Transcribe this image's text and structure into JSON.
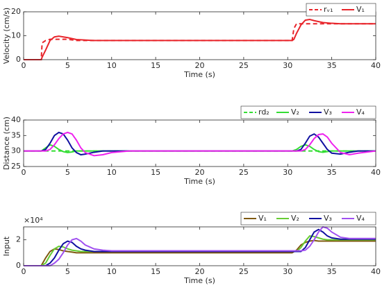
{
  "chart_data": [
    {
      "type": "line",
      "ylabel": "Velocity (cm/s)",
      "xlabel": "Time (s)",
      "x": [
        0,
        2,
        2.1,
        2.5,
        3,
        3.5,
        4,
        5,
        6,
        8,
        10,
        20,
        30,
        30.5,
        30.7,
        31,
        31.5,
        32,
        32.5,
        33,
        34,
        35,
        36,
        40
      ],
      "xlim": [
        0,
        40
      ],
      "xticks": [
        0,
        5,
        10,
        15,
        20,
        25,
        30,
        35,
        40
      ],
      "ylim": [
        0,
        20
      ],
      "yticks": [
        0,
        10,
        20
      ],
      "legend": "northeast",
      "series": [
        {
          "name": "rᵥ₁",
          "color": "#e8242a",
          "dash": true,
          "values": [
            0,
            0,
            7,
            8,
            8.5,
            8.5,
            8.5,
            8.5,
            8,
            8,
            8,
            8,
            8,
            8,
            13,
            15,
            15,
            15,
            15,
            15,
            15,
            15,
            15,
            15
          ]
        },
        {
          "name": "V₁",
          "color": "#e8242a",
          "dash": false,
          "values": [
            0,
            0,
            1,
            4,
            8,
            9.5,
            9.8,
            9.2,
            8.4,
            8,
            8,
            8,
            8,
            8,
            8.5,
            11,
            14.5,
            16.5,
            16.8,
            16.3,
            15.5,
            15.2,
            15,
            15
          ]
        }
      ]
    },
    {
      "type": "line",
      "ylabel": "Distance (cm)",
      "xlabel": "Time (s)",
      "x": [
        0,
        2,
        2.5,
        3,
        3.5,
        4,
        4.5,
        5,
        5.5,
        6,
        6.5,
        7,
        8,
        9,
        10,
        12,
        20,
        30,
        30.5,
        31,
        31.5,
        32,
        32.5,
        33,
        33.5,
        34,
        34.5,
        35,
        36,
        37,
        38,
        40
      ],
      "xlim": [
        0,
        40
      ],
      "xticks": [
        0,
        5,
        10,
        15,
        20,
        25,
        30,
        35,
        40
      ],
      "ylim": [
        25,
        40
      ],
      "yticks": [
        25,
        30,
        35,
        40
      ],
      "legend": "northeast",
      "series": [
        {
          "name": "rd₂",
          "color": "#33dd33",
          "dash": true,
          "values": [
            30,
            30,
            30,
            30,
            30,
            30,
            30,
            30,
            30,
            30,
            30,
            30,
            30,
            30,
            30,
            30,
            30,
            30,
            30,
            30,
            30,
            30,
            30,
            30,
            30,
            30,
            30,
            30,
            30,
            30,
            30,
            30
          ]
        },
        {
          "name": "V₂",
          "color": "#33dd33",
          "dash": false,
          "values": [
            30,
            30,
            31,
            32,
            31.5,
            30.5,
            29.8,
            29.5,
            29.7,
            30,
            30,
            30,
            30,
            30,
            30,
            30,
            30,
            30,
            30,
            30.5,
            31.5,
            32,
            31.5,
            30.5,
            29.8,
            29.6,
            29.8,
            30,
            30,
            30,
            30,
            30
          ]
        },
        {
          "name": "V₃",
          "color": "#1010a0",
          "dash": false,
          "values": [
            30,
            30,
            30.5,
            32.5,
            35,
            36,
            35.5,
            33.5,
            31,
            29.5,
            28.8,
            29,
            29.6,
            30,
            30,
            30,
            30,
            30,
            30,
            30,
            30.5,
            32.5,
            34.8,
            35.5,
            34.5,
            32.5,
            30.5,
            29.3,
            29,
            29.6,
            30,
            30
          ]
        },
        {
          "name": "V₄",
          "color": "#ee22ee",
          "dash": false,
          "values": [
            30,
            30,
            30,
            30.5,
            32,
            34,
            35.5,
            36,
            35.5,
            33.5,
            31,
            29.5,
            28.5,
            28.8,
            29.5,
            30,
            30,
            30,
            30,
            30,
            30,
            30.5,
            32,
            34,
            35.3,
            35.5,
            34.5,
            32.5,
            29.5,
            28.8,
            29.3,
            30
          ]
        }
      ]
    },
    {
      "type": "line",
      "ylabel": "Input",
      "xlabel": "Time (s)",
      "multiplier": "×10⁴",
      "x": [
        0,
        2,
        2.5,
        3,
        3.5,
        4,
        4.5,
        5,
        5.5,
        6,
        6.5,
        7,
        8,
        9,
        10,
        12,
        20,
        30,
        30.5,
        31,
        31.5,
        32,
        32.5,
        33,
        33.5,
        34,
        34.5,
        35,
        36,
        37,
        38,
        40
      ],
      "xlim": [
        0,
        40
      ],
      "xticks": [
        0,
        5,
        10,
        15,
        20,
        25,
        30,
        35,
        40
      ],
      "ylim": [
        0,
        3
      ],
      "yticks": [
        0,
        2
      ],
      "legend": "northeast",
      "series": [
        {
          "name": "V₁",
          "color": "#7f5a10",
          "dash": false,
          "values": [
            0,
            0,
            0.6,
            1.1,
            1.3,
            1.25,
            1.15,
            1.1,
            1.05,
            1,
            1,
            1,
            1,
            1,
            1,
            1,
            1,
            1,
            1,
            1.2,
            1.6,
            1.8,
            1.9,
            1.95,
            1.9,
            1.9,
            1.9,
            1.9,
            1.9,
            1.9,
            1.9,
            1.9
          ]
        },
        {
          "name": "V₂",
          "color": "#66cc33",
          "dash": false,
          "values": [
            0,
            0,
            0.2,
            0.8,
            1.3,
            1.5,
            1.45,
            1.3,
            1.2,
            1.15,
            1.1,
            1.1,
            1.1,
            1.1,
            1.1,
            1.1,
            1.1,
            1.1,
            1.1,
            1.1,
            1.4,
            1.9,
            2.3,
            2.25,
            2.15,
            2.05,
            2,
            2,
            2,
            2,
            2,
            2
          ]
        },
        {
          "name": "V₃",
          "color": "#1010a0",
          "dash": false,
          "values": [
            0,
            0,
            0,
            0.2,
            0.6,
            1.2,
            1.7,
            1.9,
            1.8,
            1.5,
            1.3,
            1.2,
            1.1,
            1.1,
            1.1,
            1.1,
            1.1,
            1.1,
            1.1,
            1.1,
            1.1,
            1.4,
            2,
            2.6,
            2.8,
            2.6,
            2.3,
            2.15,
            2.05,
            2.05,
            2.05,
            2.05
          ]
        },
        {
          "name": "V₄",
          "color": "#a050f0",
          "dash": false,
          "values": [
            0,
            0,
            0,
            0,
            0.2,
            0.5,
            1,
            1.6,
            2,
            2.1,
            1.9,
            1.6,
            1.3,
            1.2,
            1.15,
            1.15,
            1.15,
            1.15,
            1.15,
            1.15,
            1.15,
            1.2,
            1.5,
            2,
            2.6,
            3,
            2.9,
            2.6,
            2.2,
            2.1,
            2.1,
            2.1
          ]
        }
      ]
    }
  ]
}
